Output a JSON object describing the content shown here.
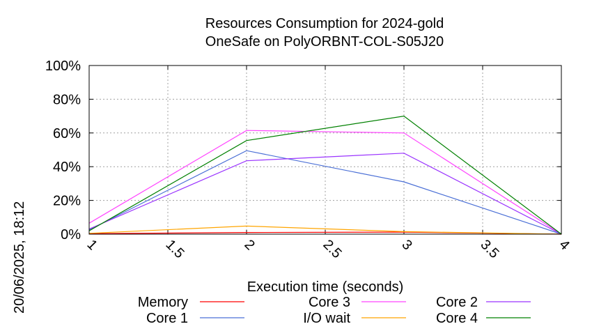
{
  "timestamp": "20/06/2025, 18:12",
  "chart_data": {
    "type": "line",
    "title": "Resources Consumption for 2024-gold",
    "subtitle": "OneSafe on PolyORBNT-COL-S05J20",
    "xlabel": "Execution time (seconds)",
    "ylabel": "",
    "xlim": [
      1,
      4
    ],
    "ylim": [
      0,
      100
    ],
    "x_ticks": [
      "1",
      "1.5",
      "2",
      "2.5",
      "3",
      "3.5",
      "4"
    ],
    "y_ticks": [
      "0%",
      "20%",
      "40%",
      "60%",
      "80%",
      "100%"
    ],
    "grid": true,
    "legend_position": "bottom",
    "x": [
      1,
      2,
      3,
      4
    ],
    "series": [
      {
        "name": "Memory",
        "color": "#ff0000",
        "values": [
          0.3,
          1.0,
          1.2,
          0.0
        ]
      },
      {
        "name": "Core 1",
        "color": "#4a6fd6",
        "values": [
          2.5,
          49.5,
          31.0,
          0.0
        ]
      },
      {
        "name": "Core 3",
        "color": "#ff44ff",
        "values": [
          6.5,
          61.5,
          60.0,
          0.0
        ]
      },
      {
        "name": "I/O wait",
        "color": "#ffa500",
        "values": [
          0.5,
          4.8,
          1.5,
          0.0
        ]
      },
      {
        "name": "Core 2",
        "color": "#9a33ff",
        "values": [
          3.0,
          43.5,
          48.0,
          0.0
        ]
      },
      {
        "name": "Core 4",
        "color": "#008000",
        "values": [
          2.0,
          55.5,
          70.0,
          0.0
        ]
      }
    ]
  }
}
